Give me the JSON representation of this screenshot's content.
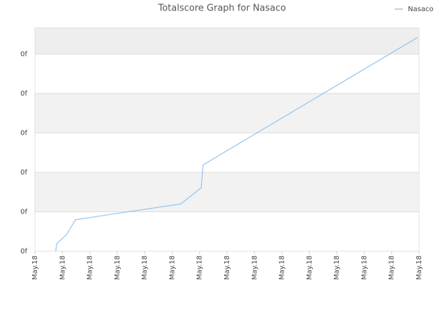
{
  "chart_data": {
    "type": "line",
    "title": "Totalscore Graph for Nasaco",
    "x": [
      0.76,
      0.79,
      1.15,
      1.48,
      5.32,
      6.06,
      6.13,
      13.95
    ],
    "series": [
      {
        "name": "Nasaco",
        "color": "#90c4f0",
        "values": [
          0,
          0.19,
          0.42,
          0.8,
          1.2,
          1.61,
          2.19,
          5.42
        ]
      }
    ],
    "xlim": [
      0,
      14
    ],
    "xticks": [
      {
        "value": 0,
        "label": "May.18"
      },
      {
        "value": 1,
        "label": "May.18"
      },
      {
        "value": 2,
        "label": "May.18"
      },
      {
        "value": 3,
        "label": "May.18"
      },
      {
        "value": 4,
        "label": "May.18"
      },
      {
        "value": 5,
        "label": "May.18"
      },
      {
        "value": 6,
        "label": "May.18"
      },
      {
        "value": 7,
        "label": "May.18"
      },
      {
        "value": 8,
        "label": "May.18"
      },
      {
        "value": 9,
        "label": "May.18"
      },
      {
        "value": 10,
        "label": "May.18"
      },
      {
        "value": 11,
        "label": "May.18"
      },
      {
        "value": 12,
        "label": "May.18"
      },
      {
        "value": 13,
        "label": "May.18"
      },
      {
        "value": 14,
        "label": "May.18"
      }
    ],
    "ylim": [
      0,
      5.66
    ],
    "yticks": [
      {
        "value": 0,
        "label": "0f"
      },
      {
        "value": 1,
        "label": "0f"
      },
      {
        "value": 2,
        "label": "0f"
      },
      {
        "value": 3,
        "label": "0f"
      },
      {
        "value": 4,
        "label": "0f"
      },
      {
        "value": 5,
        "label": "0f"
      }
    ],
    "grid": true,
    "legend": "top-right"
  }
}
